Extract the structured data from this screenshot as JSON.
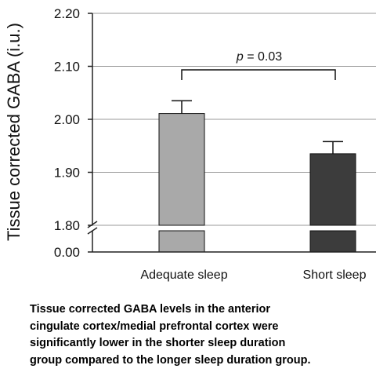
{
  "chart_data": {
    "type": "bar",
    "ylabel": "Tissue corrected GABA (i.u.)",
    "ylim": [
      1.8,
      2.2
    ],
    "broken_axis": true,
    "lower_segment_tick": "0.00",
    "yticks": [
      "2.20",
      "2.10",
      "2.00",
      "1.90",
      "1.80"
    ],
    "grid": true,
    "categories": [
      "Adequate sleep",
      "Short sleep"
    ],
    "series": [
      {
        "values": [
          2.011,
          1.935
        ],
        "errors": [
          0.024,
          0.023
        ],
        "colors": [
          "#a9a9a9",
          "#3c3c3c"
        ]
      }
    ],
    "annotation": {
      "text": "p = 0.03",
      "between": [
        "Adequate sleep",
        "Short sleep"
      ]
    }
  },
  "caption": [
    "Tissue corrected GABA levels in the anterior",
    "cingulate cortex/medial prefrontal cortex were",
    "significantly lower in the shorter sleep duration",
    "group compared to the longer sleep duration group."
  ]
}
